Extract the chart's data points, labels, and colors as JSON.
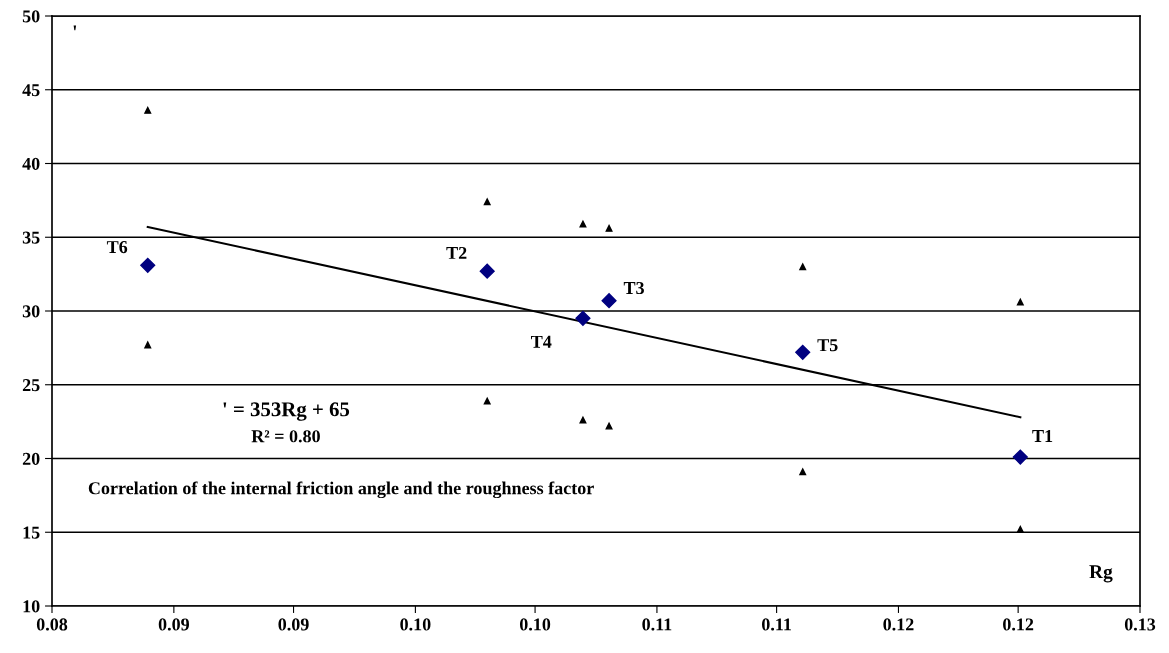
{
  "chart_data": {
    "type": "scatter",
    "xlabel": "Rg",
    "ylabel": "'",
    "xlim": [
      0.08,
      0.13
    ],
    "ylim": [
      10,
      50
    ],
    "xticks": [
      {
        "value": 0.08,
        "label": "0.08"
      },
      {
        "value": 0.0856,
        "label": "0.09"
      },
      {
        "value": 0.0911,
        "label": "0.09"
      },
      {
        "value": 0.0967,
        "label": "0.10"
      },
      {
        "value": 0.1022,
        "label": "0.10"
      },
      {
        "value": 0.1078,
        "label": "0.11"
      },
      {
        "value": 0.1133,
        "label": "0.11"
      },
      {
        "value": 0.1189,
        "label": "0.12"
      },
      {
        "value": 0.1244,
        "label": "0.12"
      },
      {
        "value": 0.13,
        "label": "0.13"
      }
    ],
    "yticks": [
      10,
      15,
      20,
      25,
      30,
      35,
      40,
      45,
      50
    ],
    "grid": "y",
    "series": [
      {
        "marker": "diamond",
        "color": "#000080",
        "x": [
          0.0844,
          0.1,
          0.1044,
          0.1056,
          0.1145,
          0.1245
        ],
        "values": [
          33.1,
          32.7,
          29.5,
          30.7,
          27.2,
          20.1
        ]
      },
      {
        "marker": "triangle",
        "color": "#000000",
        "x": [
          0.0844,
          0.1,
          0.1044,
          0.1056,
          0.1145,
          0.1245
        ],
        "values": [
          43.6,
          37.4,
          35.9,
          35.6,
          33.0,
          30.6
        ]
      },
      {
        "marker": "triangle",
        "color": "#000000",
        "x": [
          0.0844,
          0.1,
          0.1044,
          0.1056,
          0.1145,
          0.1245
        ],
        "values": [
          27.7,
          23.9,
          22.6,
          22.2,
          19.1,
          15.2
        ]
      },
      {
        "type": "line",
        "color": "#000000",
        "x": [
          0.0844,
          0.1245
        ],
        "values": [
          35.7,
          22.8
        ]
      }
    ],
    "annotations": [
      {
        "text": "T6",
        "x": 0.0844,
        "y": 33.1
      },
      {
        "text": "T2",
        "x": 0.1,
        "y": 32.7
      },
      {
        "text": "T4",
        "x": 0.1044,
        "y": 29.5
      },
      {
        "text": "T3",
        "x": 0.1056,
        "y": 30.7
      },
      {
        "text": "T5",
        "x": 0.1145,
        "y": 27.2
      },
      {
        "text": "T1",
        "x": 0.1245,
        "y": 20.1
      },
      "' = 353Rg + 65",
      "R² = 0.80",
      "Correlation of the internal friction angle and the roughness factor"
    ]
  }
}
